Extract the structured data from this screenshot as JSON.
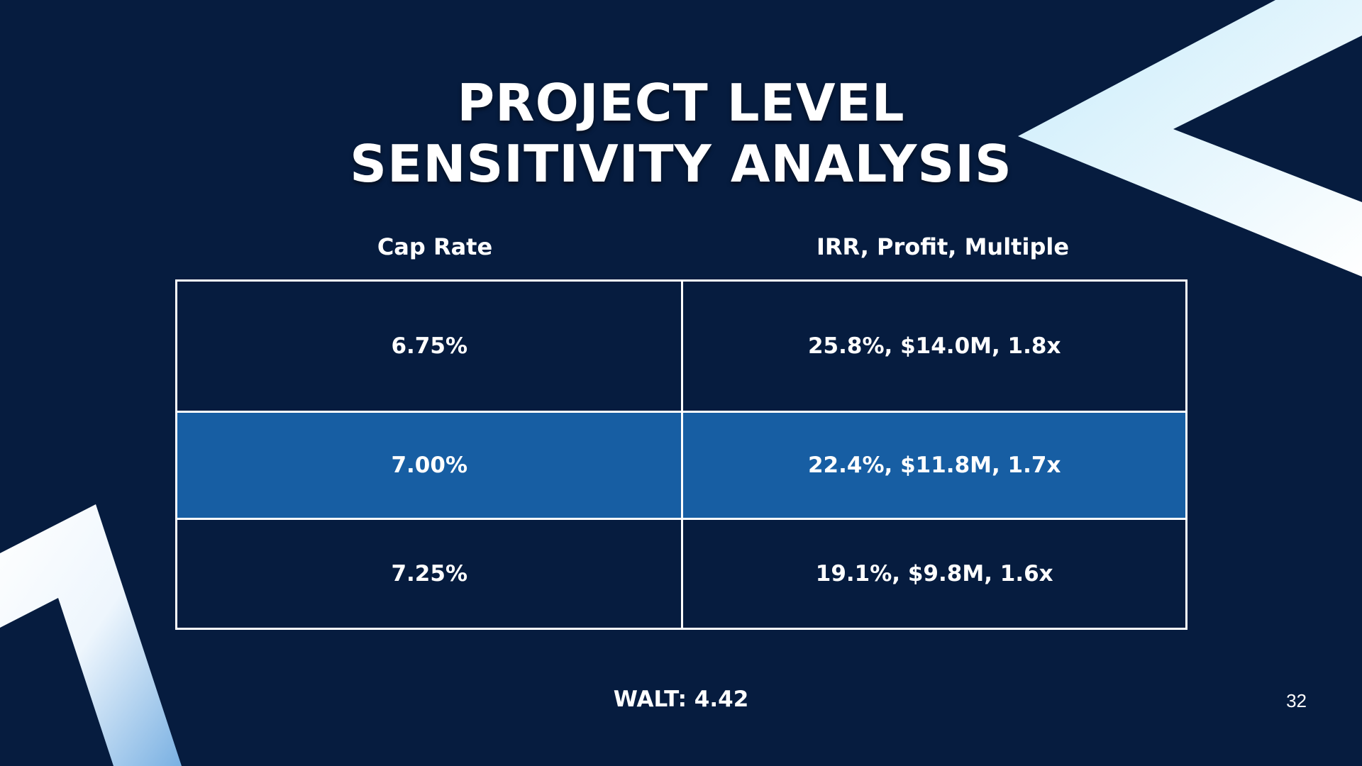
{
  "slide": {
    "title_line1": "PROJECT LEVEL",
    "title_line2": "SENSITIVITY ANALYSIS",
    "columns": [
      "Cap Rate",
      "IRR, Profit, Multiple"
    ],
    "rows": [
      {
        "cap_rate": "6.75%",
        "result": "25.8%, $14.0M, 1.8x",
        "highlighted": false
      },
      {
        "cap_rate": "7.00%",
        "result": "22.4%, $11.8M, 1.7x",
        "highlighted": true
      },
      {
        "cap_rate": "7.25%",
        "result": "19.1%, $9.8M, 1.6x",
        "highlighted": false
      }
    ],
    "footer": "WALT: 4.42",
    "page_number": "32"
  },
  "colors": {
    "background": "#061c3f",
    "highlight_row": "#175ea3",
    "text": "#ffffff",
    "grid_lines": "#ffffff",
    "accent_light": "#d2f0fc"
  }
}
